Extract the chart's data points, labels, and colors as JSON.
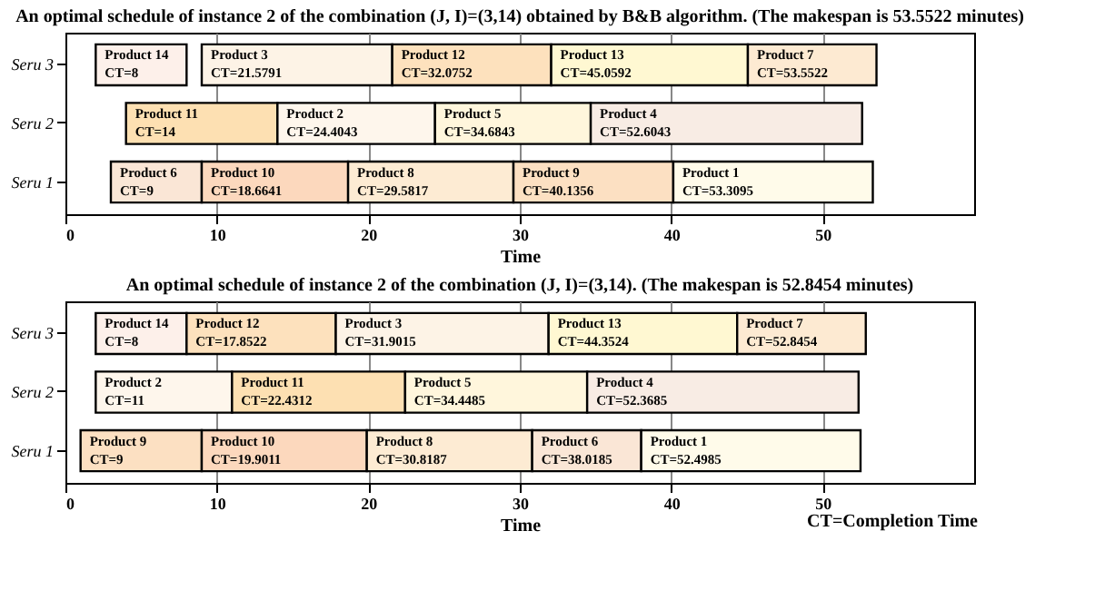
{
  "chart_data": [
    {
      "type": "bar",
      "orientation": "horizontal",
      "title": "An optimal schedule of instance 2 of the combination (J, I)=(3,14) obtained by B&B algorithm. (The makespan is 53.5522 minutes)",
      "xlabel": "Time",
      "categories": [
        "Seru 3",
        "Seru 2",
        "Seru 1"
      ],
      "xlim": [
        0,
        60
      ],
      "xticks": [
        0,
        10,
        20,
        30,
        40,
        50
      ],
      "grid": "x",
      "legend": false,
      "series": [
        {
          "name": "Product 14",
          "color": "#fdf0ea",
          "values": [
            6,
            null,
            null
          ],
          "base": [
            2,
            null,
            null
          ],
          "value_labels": [
            "CT=8",
            null,
            null
          ]
        },
        {
          "name": "Product 3",
          "color": "#fdf3e6",
          "values": [
            12.5791,
            null,
            null
          ],
          "base": [
            9,
            null,
            null
          ],
          "value_labels": [
            "CT=21.5791",
            null,
            null
          ]
        },
        {
          "name": "Product 12",
          "color": "#fde1bd",
          "values": [
            10.4961,
            null,
            null
          ],
          "base": [
            21.5791,
            null,
            null
          ],
          "value_labels": [
            "CT=32.0752",
            null,
            null
          ]
        },
        {
          "name": "Product 13",
          "color": "#fff8d2",
          "values": [
            12.984,
            null,
            null
          ],
          "base": [
            32.0752,
            null,
            null
          ],
          "value_labels": [
            "CT=45.0592",
            null,
            null
          ]
        },
        {
          "name": "Product 7",
          "color": "#fdead2",
          "values": [
            8.493,
            null,
            null
          ],
          "base": [
            45.0592,
            null,
            null
          ],
          "value_labels": [
            "CT=53.5522",
            null,
            null
          ]
        },
        {
          "name": "Product 11",
          "color": "#fde0b2",
          "values": [
            null,
            10,
            null
          ],
          "base": [
            null,
            4,
            null
          ],
          "value_labels": [
            null,
            "CT=14",
            null
          ]
        },
        {
          "name": "Product 2",
          "color": "#fef6ec",
          "values": [
            null,
            10.4043,
            null
          ],
          "base": [
            null,
            14,
            null
          ],
          "value_labels": [
            null,
            "CT=24.4043",
            null
          ]
        },
        {
          "name": "Product 5",
          "color": "#fff6dc",
          "values": [
            null,
            10.28,
            null
          ],
          "base": [
            null,
            24.4043,
            null
          ],
          "value_labels": [
            null,
            "CT=34.6843",
            null
          ]
        },
        {
          "name": "Product 4",
          "color": "#f8ece4",
          "values": [
            null,
            17.92,
            null
          ],
          "base": [
            null,
            34.6843,
            null
          ],
          "value_labels": [
            null,
            "CT=52.6043",
            null
          ]
        },
        {
          "name": "Product 6",
          "color": "#fae6d6",
          "values": [
            null,
            null,
            6
          ],
          "base": [
            null,
            null,
            3
          ],
          "value_labels": [
            null,
            null,
            "CT=9"
          ]
        },
        {
          "name": "Product 10",
          "color": "#fcd8bd",
          "values": [
            null,
            null,
            9.6641
          ],
          "base": [
            null,
            null,
            9
          ],
          "value_labels": [
            null,
            null,
            "CT=18.6641"
          ]
        },
        {
          "name": "Product 8",
          "color": "#fdebd3",
          "values": [
            null,
            null,
            10.9176
          ],
          "base": [
            null,
            null,
            18.6641
          ],
          "value_labels": [
            null,
            null,
            "CT=29.5817"
          ]
        },
        {
          "name": "Product 9",
          "color": "#fce0c2",
          "values": [
            null,
            null,
            10.5539
          ],
          "base": [
            null,
            null,
            29.5817
          ],
          "value_labels": [
            null,
            null,
            "CT=40.1356"
          ]
        },
        {
          "name": "Product 1",
          "color": "#fffbea",
          "values": [
            null,
            null,
            13.1739
          ],
          "base": [
            null,
            null,
            40.1356
          ],
          "value_labels": [
            null,
            null,
            "CT=53.3095"
          ]
        }
      ]
    },
    {
      "type": "bar",
      "orientation": "horizontal",
      "title": "An optimal schedule of instance 2 of the combination (J, I)=(3,14). (The makespan is 52.8454 minutes)",
      "xlabel": "Time",
      "annotations": [
        "CT=Completion Time"
      ],
      "categories": [
        "Seru 3",
        "Seru 2",
        "Seru 1"
      ],
      "xlim": [
        0,
        60
      ],
      "xticks": [
        0,
        10,
        20,
        30,
        40,
        50
      ],
      "grid": "x",
      "legend": false,
      "series": [
        {
          "name": "Product 14",
          "color": "#fdf0ea",
          "values": [
            6,
            null,
            null
          ],
          "base": [
            2,
            null,
            null
          ],
          "value_labels": [
            "CT=8",
            null,
            null
          ]
        },
        {
          "name": "Product 12",
          "color": "#fde1bd",
          "values": [
            9.8522,
            null,
            null
          ],
          "base": [
            8,
            null,
            null
          ],
          "value_labels": [
            "CT=17.8522",
            null,
            null
          ]
        },
        {
          "name": "Product 3",
          "color": "#fdf3e6",
          "values": [
            14.0493,
            null,
            null
          ],
          "base": [
            17.8522,
            null,
            null
          ],
          "value_labels": [
            "CT=31.9015",
            null,
            null
          ]
        },
        {
          "name": "Product 13",
          "color": "#fff8d2",
          "values": [
            12.4509,
            null,
            null
          ],
          "base": [
            31.9015,
            null,
            null
          ],
          "value_labels": [
            "CT=44.3524",
            null,
            null
          ]
        },
        {
          "name": "Product 7",
          "color": "#fdead2",
          "values": [
            8.493,
            null,
            null
          ],
          "base": [
            44.3524,
            null,
            null
          ],
          "value_labels": [
            "CT=52.8454",
            null,
            null
          ]
        },
        {
          "name": "Product 2",
          "color": "#fef6ec",
          "values": [
            null,
            9,
            null
          ],
          "base": [
            null,
            2,
            null
          ],
          "value_labels": [
            null,
            "CT=11",
            null
          ]
        },
        {
          "name": "Product 11",
          "color": "#fde0b2",
          "values": [
            null,
            11.4312,
            null
          ],
          "base": [
            null,
            11,
            null
          ],
          "value_labels": [
            null,
            "CT=22.4312",
            null
          ]
        },
        {
          "name": "Product 5",
          "color": "#fff6dc",
          "values": [
            null,
            12.0173,
            null
          ],
          "base": [
            null,
            22.4312,
            null
          ],
          "value_labels": [
            null,
            "CT=34.4485",
            null
          ]
        },
        {
          "name": "Product 4",
          "color": "#f8ece4",
          "values": [
            null,
            17.92,
            null
          ],
          "base": [
            null,
            34.4485,
            null
          ],
          "value_labels": [
            null,
            "CT=52.3685",
            null
          ]
        },
        {
          "name": "Product 9",
          "color": "#fce0c2",
          "values": [
            null,
            null,
            8
          ],
          "base": [
            null,
            null,
            1
          ],
          "value_labels": [
            null,
            null,
            "CT=9"
          ]
        },
        {
          "name": "Product 10",
          "color": "#fcd8bd",
          "values": [
            null,
            null,
            10.9011
          ],
          "base": [
            null,
            null,
            9
          ],
          "value_labels": [
            null,
            null,
            "CT=19.9011"
          ]
        },
        {
          "name": "Product 8",
          "color": "#fdebd3",
          "values": [
            null,
            null,
            10.9176
          ],
          "base": [
            null,
            null,
            19.9011
          ],
          "value_labels": [
            null,
            null,
            "CT=30.8187"
          ]
        },
        {
          "name": "Product 6",
          "color": "#fae6d6",
          "values": [
            null,
            null,
            7.1998
          ],
          "base": [
            null,
            null,
            30.8187
          ],
          "value_labels": [
            null,
            null,
            "CT=38.0185"
          ]
        },
        {
          "name": "Product 1",
          "color": "#fffbea",
          "values": [
            null,
            null,
            14.48
          ],
          "base": [
            null,
            null,
            38.0185
          ],
          "value_labels": [
            null,
            null,
            "CT=52.4985"
          ]
        }
      ]
    }
  ]
}
